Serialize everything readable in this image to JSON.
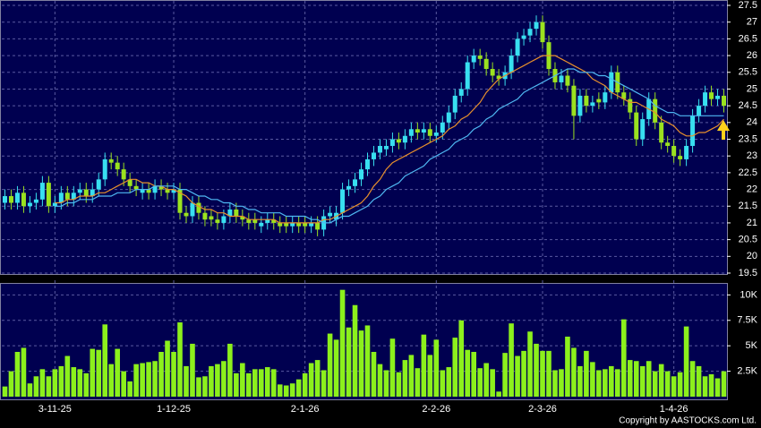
{
  "chart_data": [
    {
      "type": "candlestick",
      "open": [
        21.6,
        21.8,
        21.6,
        21.9,
        21.5,
        21.6,
        21.7,
        22.2,
        21.5,
        21.6,
        21.9,
        21.7,
        21.9,
        22.0,
        21.8,
        22.0,
        22.3,
        22.9,
        22.8,
        22.6,
        22.3,
        22.1,
        21.9,
        22.0,
        21.9,
        22.1,
        22.0,
        21.9,
        22.0,
        21.3,
        21.2,
        21.6,
        21.3,
        21.2,
        21.1,
        21.0,
        21.2,
        21.4,
        21.2,
        21.1,
        21.1,
        20.9,
        21.0,
        21.1,
        21.0,
        21.0,
        20.9,
        21.0,
        21.0,
        20.9,
        21.0,
        20.8,
        21.2,
        21.1,
        21.3,
        22.0,
        22.1,
        22.3,
        22.6,
        22.9,
        23.1,
        23.2,
        23.3,
        23.5,
        23.4,
        23.6,
        23.8,
        23.7,
        23.8,
        23.6,
        23.7,
        24.0,
        24.3,
        24.8,
        25.0,
        25.8,
        26.0,
        25.9,
        25.6,
        25.4,
        25.3,
        25.5,
        26.0,
        26.5,
        26.6,
        26.8,
        27.0,
        26.4,
        25.6,
        25.2,
        25.4,
        25.1,
        24.2,
        24.8,
        24.5,
        24.7,
        24.6,
        24.9,
        25.5,
        24.9,
        24.7,
        24.3,
        23.5,
        24.1,
        24.7,
        24.0,
        23.4,
        23.3,
        23.0,
        22.9,
        23.3,
        24.2,
        24.5,
        24.9,
        24.7,
        24.8
      ],
      "high": [
        22.0,
        22.0,
        22.1,
        22.1,
        21.8,
        21.9,
        22.4,
        22.4,
        21.8,
        22.1,
        22.1,
        22.1,
        22.2,
        22.2,
        22.2,
        22.5,
        23.1,
        23.1,
        23.0,
        22.8,
        22.5,
        22.3,
        22.2,
        22.2,
        22.3,
        22.3,
        22.2,
        22.2,
        22.2,
        21.5,
        21.8,
        21.8,
        21.5,
        21.4,
        21.3,
        21.4,
        21.6,
        21.6,
        21.4,
        21.3,
        21.3,
        21.2,
        21.3,
        21.3,
        21.2,
        21.2,
        21.2,
        21.2,
        21.2,
        21.2,
        21.2,
        21.4,
        21.5,
        21.5,
        22.2,
        22.3,
        22.5,
        22.8,
        23.1,
        23.3,
        23.5,
        23.5,
        23.7,
        23.7,
        23.8,
        24.0,
        24.0,
        24.0,
        24.0,
        23.9,
        24.2,
        24.5,
        25.0,
        25.2,
        26.0,
        26.2,
        26.2,
        26.1,
        25.8,
        25.6,
        25.7,
        26.2,
        26.7,
        26.8,
        27.0,
        27.2,
        27.2,
        26.6,
        25.8,
        25.6,
        25.6,
        25.3,
        25.0,
        25.0,
        24.8,
        24.9,
        25.1,
        25.7,
        25.7,
        25.1,
        24.9,
        24.5,
        24.3,
        24.9,
        24.9,
        24.2,
        23.6,
        23.5,
        23.2,
        23.5,
        24.4,
        24.7,
        25.1,
        25.1,
        25.0,
        25.0
      ],
      "low": [
        21.4,
        21.4,
        21.4,
        21.3,
        21.3,
        21.4,
        21.5,
        21.3,
        21.3,
        21.4,
        21.5,
        21.5,
        21.7,
        21.6,
        21.6,
        21.8,
        22.1,
        22.6,
        22.4,
        22.1,
        21.9,
        21.8,
        21.7,
        21.7,
        21.7,
        21.8,
        21.7,
        21.7,
        21.1,
        21.0,
        21.0,
        21.1,
        20.9,
        20.9,
        20.8,
        20.8,
        21.0,
        21.0,
        20.9,
        20.8,
        20.8,
        20.7,
        20.8,
        20.8,
        20.7,
        20.7,
        20.7,
        20.7,
        20.7,
        20.7,
        20.6,
        20.6,
        21.0,
        20.9,
        21.1,
        21.8,
        21.9,
        22.1,
        22.4,
        22.7,
        22.9,
        23.0,
        23.1,
        23.2,
        23.2,
        23.4,
        23.5,
        23.5,
        23.4,
        23.4,
        23.5,
        23.8,
        24.1,
        24.6,
        24.8,
        25.6,
        25.7,
        25.4,
        25.2,
        25.1,
        25.1,
        25.3,
        25.8,
        26.3,
        26.4,
        26.6,
        26.2,
        25.4,
        25.0,
        25.0,
        24.9,
        23.5,
        24.0,
        24.3,
        24.3,
        24.4,
        24.4,
        24.7,
        24.7,
        24.5,
        24.1,
        23.3,
        23.3,
        23.9,
        23.8,
        23.2,
        23.1,
        22.8,
        22.7,
        22.7,
        23.1,
        24.0,
        24.3,
        24.5,
        24.5,
        24.3
      ],
      "close": [
        21.8,
        21.6,
        21.9,
        21.5,
        21.6,
        21.7,
        22.2,
        21.5,
        21.6,
        21.9,
        21.7,
        21.9,
        22.0,
        21.8,
        22.0,
        22.3,
        22.9,
        22.8,
        22.6,
        22.3,
        22.1,
        22.0,
        22.0,
        21.9,
        22.1,
        22.0,
        21.9,
        22.0,
        21.3,
        21.2,
        21.6,
        21.3,
        21.1,
        21.1,
        21.0,
        21.2,
        21.4,
        21.2,
        21.1,
        21.0,
        21.0,
        21.0,
        21.1,
        21.0,
        20.9,
        20.9,
        21.0,
        20.9,
        20.9,
        21.0,
        20.8,
        21.2,
        21.3,
        21.3,
        22.0,
        22.1,
        22.3,
        22.6,
        22.9,
        23.1,
        23.3,
        23.3,
        23.5,
        23.4,
        23.6,
        23.8,
        23.7,
        23.8,
        23.6,
        23.7,
        24.0,
        24.3,
        24.8,
        25.0,
        25.8,
        26.0,
        25.9,
        25.6,
        25.4,
        25.3,
        25.5,
        26.0,
        26.5,
        26.6,
        26.8,
        27.0,
        26.4,
        25.6,
        25.2,
        25.4,
        25.1,
        24.2,
        24.8,
        24.5,
        24.6,
        24.6,
        24.9,
        25.5,
        24.9,
        24.7,
        24.3,
        23.5,
        24.1,
        24.7,
        24.0,
        23.4,
        23.3,
        23.0,
        22.9,
        23.3,
        24.2,
        24.5,
        24.9,
        24.7,
        24.8,
        24.5
      ],
      "up_color": "#38dff0",
      "down_color": "#9be21f",
      "series": [
        {
          "color": "#e8902c",
          "values": [
            null,
            null,
            null,
            null,
            null,
            null,
            null,
            null,
            21.6,
            21.6,
            21.7,
            21.7,
            21.8,
            21.8,
            21.8,
            21.9,
            21.9,
            22.0,
            22.1,
            22.2,
            22.3,
            22.3,
            22.2,
            22.2,
            22.1,
            22.1,
            22.0,
            22.0,
            21.9,
            21.8,
            21.6,
            21.5,
            21.4,
            21.4,
            21.3,
            21.3,
            21.2,
            21.2,
            21.2,
            21.1,
            21.1,
            21.1,
            21.1,
            21.1,
            21.0,
            21.0,
            21.0,
            21.0,
            21.0,
            21.0,
            21.0,
            21.1,
            21.1,
            21.2,
            21.3,
            21.4,
            21.5,
            21.6,
            21.8,
            22.1,
            22.3,
            22.6,
            22.8,
            22.9,
            23.0,
            23.1,
            23.2,
            23.3,
            23.4,
            23.5,
            23.6,
            23.8,
            23.9,
            24.1,
            24.2,
            24.4,
            24.6,
            24.9,
            25.1,
            25.3,
            25.4,
            25.5,
            25.6,
            25.7,
            25.8,
            25.9,
            26.0,
            26.0,
            26.0,
            25.9,
            25.8,
            25.7,
            25.6,
            25.5,
            25.3,
            25.2,
            25.1,
            24.9,
            24.8,
            24.7,
            24.6,
            24.6,
            24.5,
            24.4,
            24.3,
            24.1,
            24.0,
            23.9,
            23.7,
            23.6,
            23.6,
            23.7,
            23.7,
            23.8,
            23.9,
            24.1
          ]
        },
        {
          "color": "#4fb8f2",
          "values": [
            null,
            null,
            null,
            null,
            null,
            null,
            null,
            null,
            21.5,
            21.5,
            21.6,
            21.6,
            21.7,
            21.7,
            21.7,
            21.8,
            21.8,
            21.8,
            21.9,
            21.9,
            21.9,
            22.0,
            22.0,
            22.0,
            22.1,
            22.1,
            22.1,
            22.1,
            22.0,
            22.0,
            21.9,
            21.8,
            21.8,
            21.7,
            21.7,
            21.6,
            21.6,
            21.5,
            21.5,
            21.4,
            21.4,
            21.3,
            21.3,
            21.3,
            21.3,
            21.2,
            21.2,
            21.2,
            21.2,
            21.1,
            21.1,
            21.0,
            21.0,
            21.1,
            21.2,
            21.2,
            21.3,
            21.4,
            21.5,
            21.7,
            21.8,
            22.0,
            22.1,
            22.2,
            22.4,
            22.5,
            22.6,
            22.7,
            22.9,
            23.0,
            23.1,
            23.2,
            23.4,
            23.5,
            23.6,
            23.8,
            23.9,
            24.1,
            24.2,
            24.4,
            24.5,
            24.6,
            24.7,
            24.9,
            25.0,
            25.1,
            25.2,
            25.3,
            25.4,
            25.5,
            25.6,
            25.6,
            25.5,
            25.5,
            25.5,
            25.4,
            25.4,
            25.3,
            25.2,
            25.1,
            25.0,
            24.9,
            24.8,
            24.7,
            24.5,
            24.4,
            24.3,
            24.3,
            24.2,
            24.2,
            24.2,
            24.2,
            24.2,
            24.2,
            24.2,
            24.2
          ]
        }
      ],
      "ylim": [
        19.5,
        27.5
      ],
      "yticks": [
        19.5,
        20,
        20.5,
        21,
        21.5,
        22,
        22.5,
        23,
        23.5,
        24,
        24.5,
        25,
        25.5,
        26,
        26.5,
        27,
        27.5
      ],
      "grid": true
    },
    {
      "type": "bar",
      "categories": [
        null,
        null,
        null,
        null,
        null,
        null,
        null,
        null,
        "3-11-25",
        null,
        null,
        null,
        null,
        null,
        null,
        null,
        null,
        null,
        null,
        null,
        null,
        null,
        null,
        null,
        null,
        null,
        null,
        "1-12-25",
        null,
        null,
        null,
        null,
        null,
        null,
        null,
        null,
        null,
        null,
        null,
        null,
        null,
        null,
        null,
        null,
        null,
        null,
        null,
        null,
        "2-1-26",
        null,
        null,
        null,
        null,
        null,
        null,
        null,
        null,
        null,
        null,
        null,
        null,
        null,
        null,
        null,
        null,
        null,
        null,
        null,
        null,
        "2-2-26",
        null,
        null,
        null,
        null,
        null,
        null,
        null,
        null,
        null,
        null,
        null,
        null,
        null,
        null,
        null,
        null,
        "2-3-26",
        null,
        null,
        null,
        null,
        null,
        null,
        null,
        null,
        null,
        null,
        null,
        null,
        null,
        null,
        null,
        null,
        null,
        null,
        null,
        null,
        "1-4-26",
        null,
        null,
        null,
        null,
        null,
        null,
        null,
        null
      ],
      "values": [
        1000,
        2500,
        4400,
        4800,
        1300,
        2000,
        2700,
        2000,
        2700,
        3000,
        4000,
        2900,
        2700,
        2300,
        4700,
        4600,
        7100,
        3200,
        4700,
        2500,
        1500,
        3200,
        3300,
        3400,
        3500,
        4400,
        5500,
        4400,
        7300,
        3000,
        5200,
        1900,
        2000,
        3000,
        3200,
        3500,
        5200,
        2300,
        3300,
        2300,
        2700,
        2700,
        2900,
        2700,
        1200,
        1100,
        1300,
        1700,
        2300,
        3300,
        3600,
        2600,
        6200,
        5600,
        10500,
        6800,
        9000,
        6500,
        7000,
        4400,
        3200,
        2600,
        5700,
        2400,
        3600,
        4100,
        2800,
        6100,
        4100,
        5600,
        2600,
        2900,
        5800,
        7500,
        4600,
        4400,
        2800,
        3300,
        2700,
        500,
        4300,
        7200,
        4000,
        4500,
        6400,
        5200,
        4500,
        4500,
        2600,
        2700,
        5900,
        4800,
        3000,
        4500,
        3400,
        2600,
        2700,
        3000,
        2700,
        7600,
        3600,
        3500,
        3000,
        3500,
        2500,
        3200,
        2500,
        2000,
        2400,
        6900,
        3500,
        3000,
        2000,
        2200,
        1800,
        2500
      ],
      "color": "#8cf01c",
      "ylim": [
        0,
        11000
      ],
      "yticks": [
        {
          "value": 2500,
          "label": "2.5K"
        },
        {
          "value": 5000,
          "label": "5K"
        },
        {
          "value": 7500,
          "label": "7.5K"
        },
        {
          "value": 10000,
          "label": "10K"
        }
      ],
      "grid": true
    }
  ],
  "credit": "Copyright by AASTOCKS.com Ltd."
}
